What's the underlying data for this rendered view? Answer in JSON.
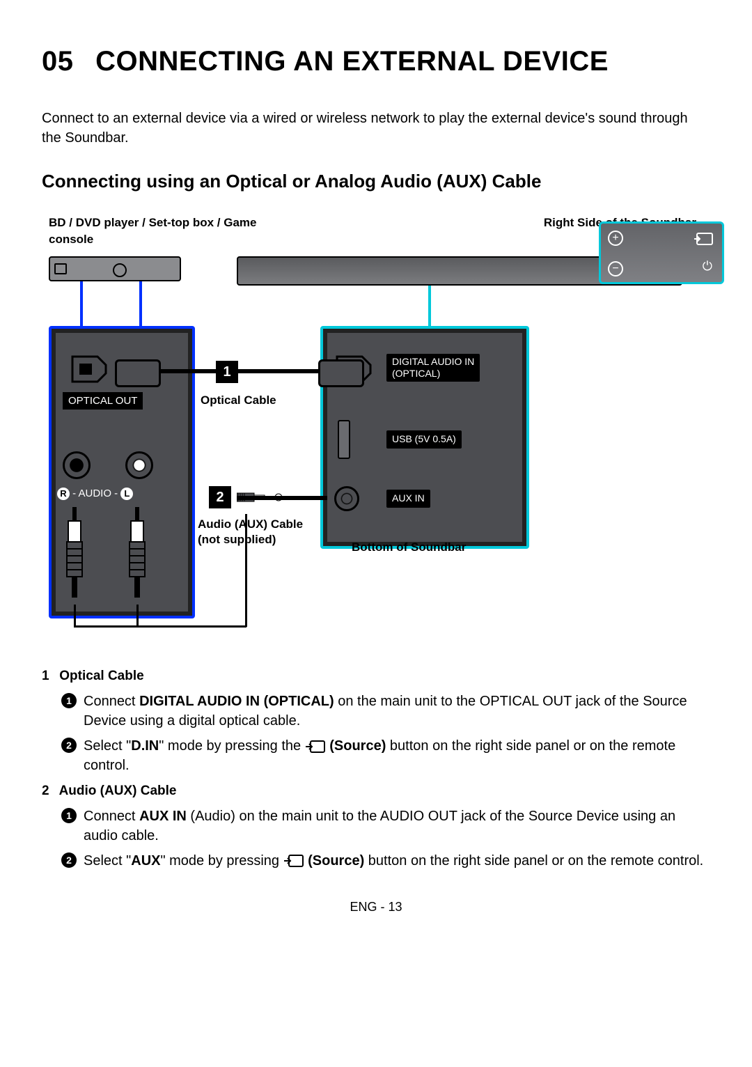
{
  "chapter_number": "05",
  "chapter_title": "CONNECTING AN EXTERNAL DEVICE",
  "intro": "Connect to an external device via a wired or wireless network to play the external device's sound through the Soundbar.",
  "section_title": "Connecting using an Optical or Analog Audio (AUX) Cable",
  "diagram": {
    "source_label": "BD / DVD player / Set-top box / Game console",
    "right_label": "Right Side of the Soundbar",
    "bottom_label": "Bottom of Soundbar",
    "cable1_label": "Optical Cable",
    "cable2_label_line1": "Audio (AUX) Cable",
    "cable2_label_line2": "(not supplied)",
    "badge1": "1",
    "badge2": "2",
    "left_ports": {
      "optical_out": "OPTICAL OUT",
      "audio_rl": "R - AUDIO - L"
    },
    "right_ports": {
      "digital_in_line1": "DIGITAL AUDIO IN",
      "digital_in_line2": "(OPTICAL)",
      "usb": "USB (5V 0.5A)",
      "aux": "AUX IN"
    },
    "colors": {
      "highlight_blue": "#0030ff",
      "highlight_cyan": "#00c8da",
      "device_fill": "#7b7c7f",
      "panel_fill": "#4c4d51"
    }
  },
  "instructions": [
    {
      "num": "1",
      "title": "Optical Cable",
      "steps": [
        {
          "n": "1",
          "pre": "Connect ",
          "bold": "DIGITAL AUDIO IN (OPTICAL)",
          "post": " on the main unit to the OPTICAL OUT jack of the Source Device using a digital optical cable."
        },
        {
          "n": "2",
          "pre": "Select \"",
          "bold": "D.IN",
          "mid": "\" mode by pressing the ",
          "icon": true,
          "bold2": "(Source)",
          "post": " button on the right side panel or on the remote control."
        }
      ]
    },
    {
      "num": "2",
      "title": "Audio (AUX) Cable",
      "steps": [
        {
          "n": "1",
          "pre": "Connect ",
          "bold": "AUX IN",
          "post": " (Audio) on the main unit to the AUDIO OUT jack of the Source Device using an audio cable."
        },
        {
          "n": "2",
          "pre": "Select \"",
          "bold": "AUX",
          "mid": "\" mode by pressing ",
          "icon": true,
          "bold2": "(Source)",
          "post": " button on the right side panel or on the remote control."
        }
      ]
    }
  ],
  "footer": "ENG - 13"
}
